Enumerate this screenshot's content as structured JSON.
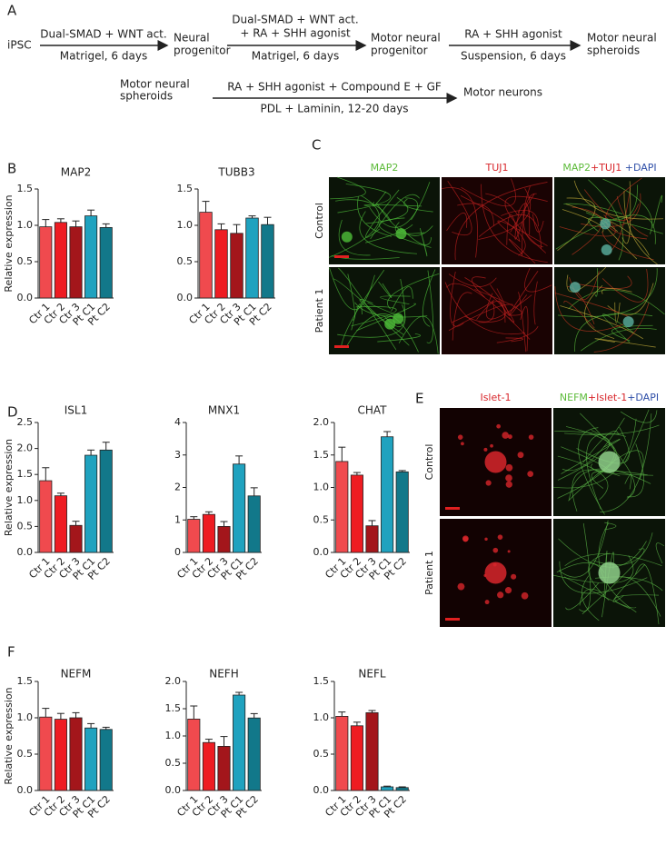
{
  "panel_labels": [
    "A",
    "B",
    "C",
    "D",
    "E",
    "F"
  ],
  "schematic": {
    "start": "iPSC",
    "step1_top": "Dual-SMAD + WNT act.",
    "step1_bottom": "Matrigel, 6 days",
    "stage1": [
      "Neural",
      "progenitor"
    ],
    "step2_top": [
      "Dual-SMAD + WNT  act.",
      "+ RA  + SHH agonist"
    ],
    "step2_bottom": "Matrigel, 6 days",
    "stage2": [
      "Motor neural",
      "progenitor"
    ],
    "step3_top": "RA  + SHH agonist",
    "step3_bottom": "Suspension, 6 days",
    "stage3": [
      "Motor neural",
      "spheroids"
    ],
    "stage3b": [
      "Motor neural",
      "spheroids"
    ],
    "step4_top": "RA  + SHH agonist + Compound E + GF",
    "step4_bottom": "PDL + Laminin, 12-20 days",
    "end": "Motor neurons"
  },
  "images_C": {
    "columns": [
      [
        "MAP2"
      ],
      [
        "TUJ1"
      ],
      [
        "MAP2",
        "+TUJ1",
        " +DAPI"
      ]
    ],
    "rows": [
      "Control",
      "Patient 1"
    ]
  },
  "images_E": {
    "columns": [
      [
        "Islet-1"
      ],
      [
        "NEFM",
        "+Islet-1",
        "+DAPI"
      ]
    ],
    "rows": [
      "Control",
      "Patient 1"
    ]
  },
  "chart_data": [
    {
      "type": "bar",
      "title": "MAP2",
      "ylabel": "Relative expression",
      "categories": [
        "Ctr 1",
        "Ctr 2",
        "Ctr 3",
        "Pt C1",
        "Pt C2"
      ],
      "values": [
        0.98,
        1.04,
        0.98,
        1.13,
        0.97
      ],
      "errors": [
        0.1,
        0.05,
        0.08,
        0.08,
        0.05
      ],
      "colors": [
        "#f04a4e",
        "#ee1c22",
        "#a3161b",
        "#1fa2bf",
        "#12788a"
      ],
      "ylim": [
        0,
        1.5
      ],
      "yticks": [
        {
          "value": 0,
          "label": "0.0"
        },
        0.5,
        {
          "value": 1,
          "label": "1.0"
        },
        1.5
      ]
    },
    {
      "type": "bar",
      "title": "TUBB3",
      "categories": [
        "Ctr 1",
        "Ctr 2",
        "Ctr 3",
        "Pt C1",
        "Pt C2"
      ],
      "values": [
        1.18,
        0.94,
        0.89,
        1.1,
        1.01
      ],
      "errors": [
        0.15,
        0.08,
        0.12,
        0.03,
        0.1
      ],
      "colors": [
        "#f04a4e",
        "#ee1c22",
        "#a3161b",
        "#1fa2bf",
        "#12788a"
      ],
      "ylim": [
        0,
        1.5
      ],
      "yticks": [
        {
          "value": 0,
          "label": "0.0"
        },
        0.5,
        {
          "value": 1,
          "label": "1.0"
        },
        1.5
      ]
    },
    {
      "type": "bar",
      "title": "ISL1",
      "ylabel": "Relative expression",
      "categories": [
        "Ctr 1",
        "Ctr 2",
        "Ctr 3",
        "Pt C1",
        "Pt C2"
      ],
      "values": [
        1.38,
        1.09,
        0.52,
        1.87,
        1.97
      ],
      "errors": [
        0.25,
        0.05,
        0.08,
        0.1,
        0.15
      ],
      "colors": [
        "#f04a4e",
        "#ee1c22",
        "#a3161b",
        "#1fa2bf",
        "#12788a"
      ],
      "ylim": [
        0,
        2.5
      ],
      "yticks": [
        {
          "value": 0,
          "label": "0.0"
        },
        0.5,
        {
          "value": 1,
          "label": "1.0"
        },
        1.5,
        {
          "value": 2,
          "label": "2.0"
        },
        2.5
      ]
    },
    {
      "type": "bar",
      "title": "MNX1",
      "categories": [
        "Ctr 1",
        "Ctr 2",
        "Ctr 3",
        "Pt C1",
        "Pt C2"
      ],
      "values": [
        1.02,
        1.17,
        0.8,
        2.72,
        1.74
      ],
      "errors": [
        0.08,
        0.08,
        0.15,
        0.25,
        0.25
      ],
      "colors": [
        "#f04a4e",
        "#ee1c22",
        "#a3161b",
        "#1fa2bf",
        "#12788a"
      ],
      "ylim": [
        0,
        4
      ],
      "yticks": [
        0,
        1,
        2,
        3,
        4
      ]
    },
    {
      "type": "bar",
      "title": "CHAT",
      "categories": [
        "Ctr 1",
        "Ctr 2",
        "Ctr 3",
        "Pt C1",
        "Pt C2"
      ],
      "values": [
        1.4,
        1.19,
        0.41,
        1.78,
        1.24
      ],
      "errors": [
        0.22,
        0.04,
        0.08,
        0.08,
        0.02
      ],
      "colors": [
        "#f04a4e",
        "#ee1c22",
        "#a3161b",
        "#1fa2bf",
        "#12788a"
      ],
      "ylim": [
        0,
        2
      ],
      "yticks": [
        {
          "value": 0,
          "label": "0.0"
        },
        0.5,
        {
          "value": 1,
          "label": "1.0"
        },
        1.5,
        {
          "value": 2,
          "label": "2.0"
        }
      ]
    },
    {
      "type": "bar",
      "title": "NEFM",
      "ylabel": "Relative expression",
      "categories": [
        "Ctr 1",
        "Ctr 2",
        "Ctr 3",
        "Pt C1",
        "Pt C2"
      ],
      "values": [
        1.01,
        0.98,
        1.0,
        0.86,
        0.84
      ],
      "errors": [
        0.12,
        0.08,
        0.07,
        0.06,
        0.03
      ],
      "colors": [
        "#f04a4e",
        "#ee1c22",
        "#a3161b",
        "#1fa2bf",
        "#12788a"
      ],
      "ylim": [
        0,
        1.5
      ],
      "yticks": [
        {
          "value": 0,
          "label": "0.0"
        },
        0.5,
        {
          "value": 1,
          "label": "1.0"
        },
        1.5
      ]
    },
    {
      "type": "bar",
      "title": "NEFH",
      "categories": [
        "Ctr 1",
        "Ctr 2",
        "Ctr 3",
        "Pt C1",
        "Pt C2"
      ],
      "values": [
        1.31,
        0.88,
        0.81,
        1.75,
        1.33
      ],
      "errors": [
        0.24,
        0.06,
        0.18,
        0.05,
        0.08
      ],
      "colors": [
        "#f04a4e",
        "#ee1c22",
        "#a3161b",
        "#1fa2bf",
        "#12788a"
      ],
      "ylim": [
        0,
        2
      ],
      "yticks": [
        {
          "value": 0,
          "label": "0.0"
        },
        0.5,
        {
          "value": 1,
          "label": "1.0"
        },
        1.5,
        {
          "value": 2,
          "label": "2.0"
        }
      ]
    },
    {
      "type": "bar",
      "title": "NEFL",
      "categories": [
        "Ctr 1",
        "Ctr 2",
        "Ctr 3",
        "Pt C1",
        "Pt C2"
      ],
      "values": [
        1.02,
        0.89,
        1.07,
        0.05,
        0.04
      ],
      "errors": [
        0.06,
        0.05,
        0.03,
        0.01,
        0.01
      ],
      "colors": [
        "#f04a4e",
        "#ee1c22",
        "#a3161b",
        "#1fa2bf",
        "#12788a"
      ],
      "ylim": [
        0,
        1.5
      ],
      "yticks": [
        {
          "value": 0,
          "label": "0.0"
        },
        0.5,
        {
          "value": 1,
          "label": "1.0"
        },
        1.5
      ]
    }
  ]
}
